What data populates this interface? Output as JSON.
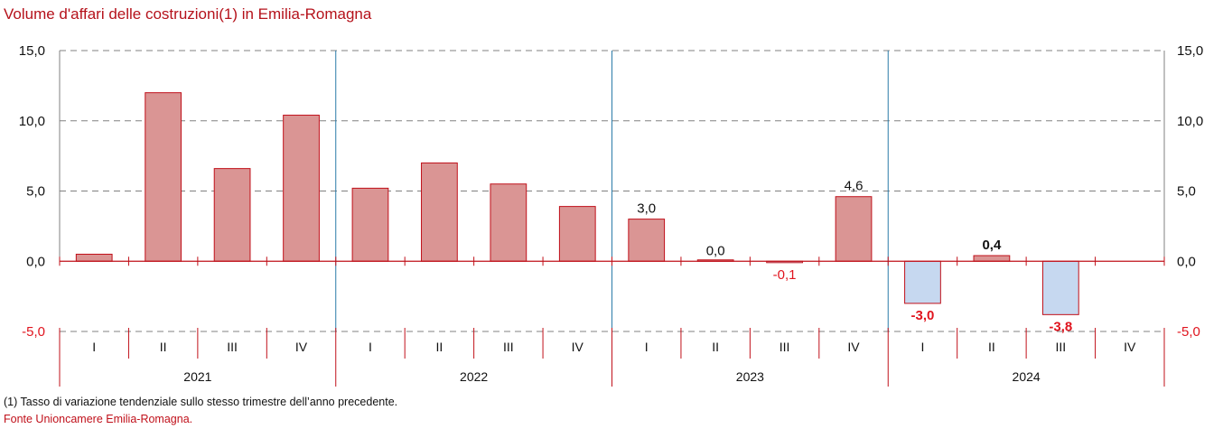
{
  "title": "Volume d'affari delle costruzioni(1) in Emilia-Romagna",
  "footnote": "(1) Tasso di variazione tendenziale sullo stesso trimestre dell’anno precedente.",
  "source": "Fonte Unioncamere Emilia-Romagna.",
  "colors": {
    "title": "#b5121b",
    "positive_bar": "#da9594",
    "negative_bar": "#c6d8f0",
    "bar_border": "#c0101a",
    "axis_red": "#c0101a",
    "grid": "#808080",
    "year_divider": "#2a7ba8",
    "negative_label": "#e0141e"
  },
  "chart_data": {
    "type": "bar",
    "title": "Volume d'affari delle costruzioni(1) in Emilia-Romagna",
    "xlabel": "",
    "ylabel": "",
    "ylim": [
      -5,
      15
    ],
    "yticks": [
      15,
      10,
      5,
      0,
      -5
    ],
    "ytick_labels": [
      "15,0",
      "10,0",
      "5,0",
      "0,0",
      "-5,0"
    ],
    "grid": true,
    "dual_y_axis": true,
    "years": [
      "2021",
      "2022",
      "2023",
      "2024"
    ],
    "quarters": [
      "I",
      "II",
      "III",
      "IV"
    ],
    "categories": [
      "2021 I",
      "2021 II",
      "2021 III",
      "2021 IV",
      "2022 I",
      "2022 II",
      "2022 III",
      "2022 IV",
      "2023 I",
      "2023 II",
      "2023 III",
      "2023 IV",
      "2024 I",
      "2024 II",
      "2024 III",
      "2024 IV"
    ],
    "values": [
      0.5,
      12.0,
      6.6,
      10.4,
      5.2,
      7.0,
      5.5,
      3.9,
      3.0,
      0.0,
      -0.1,
      4.6,
      -3.0,
      0.4,
      -3.8,
      null
    ],
    "data_labels": [
      null,
      null,
      null,
      null,
      null,
      null,
      null,
      null,
      "3,0",
      "0,0",
      "-0,1",
      "4,6",
      "-3,0",
      "0,4",
      "-3,8",
      null
    ],
    "bold_labels": [
      false,
      false,
      false,
      false,
      false,
      false,
      false,
      false,
      false,
      false,
      false,
      false,
      true,
      true,
      true,
      false
    ]
  }
}
